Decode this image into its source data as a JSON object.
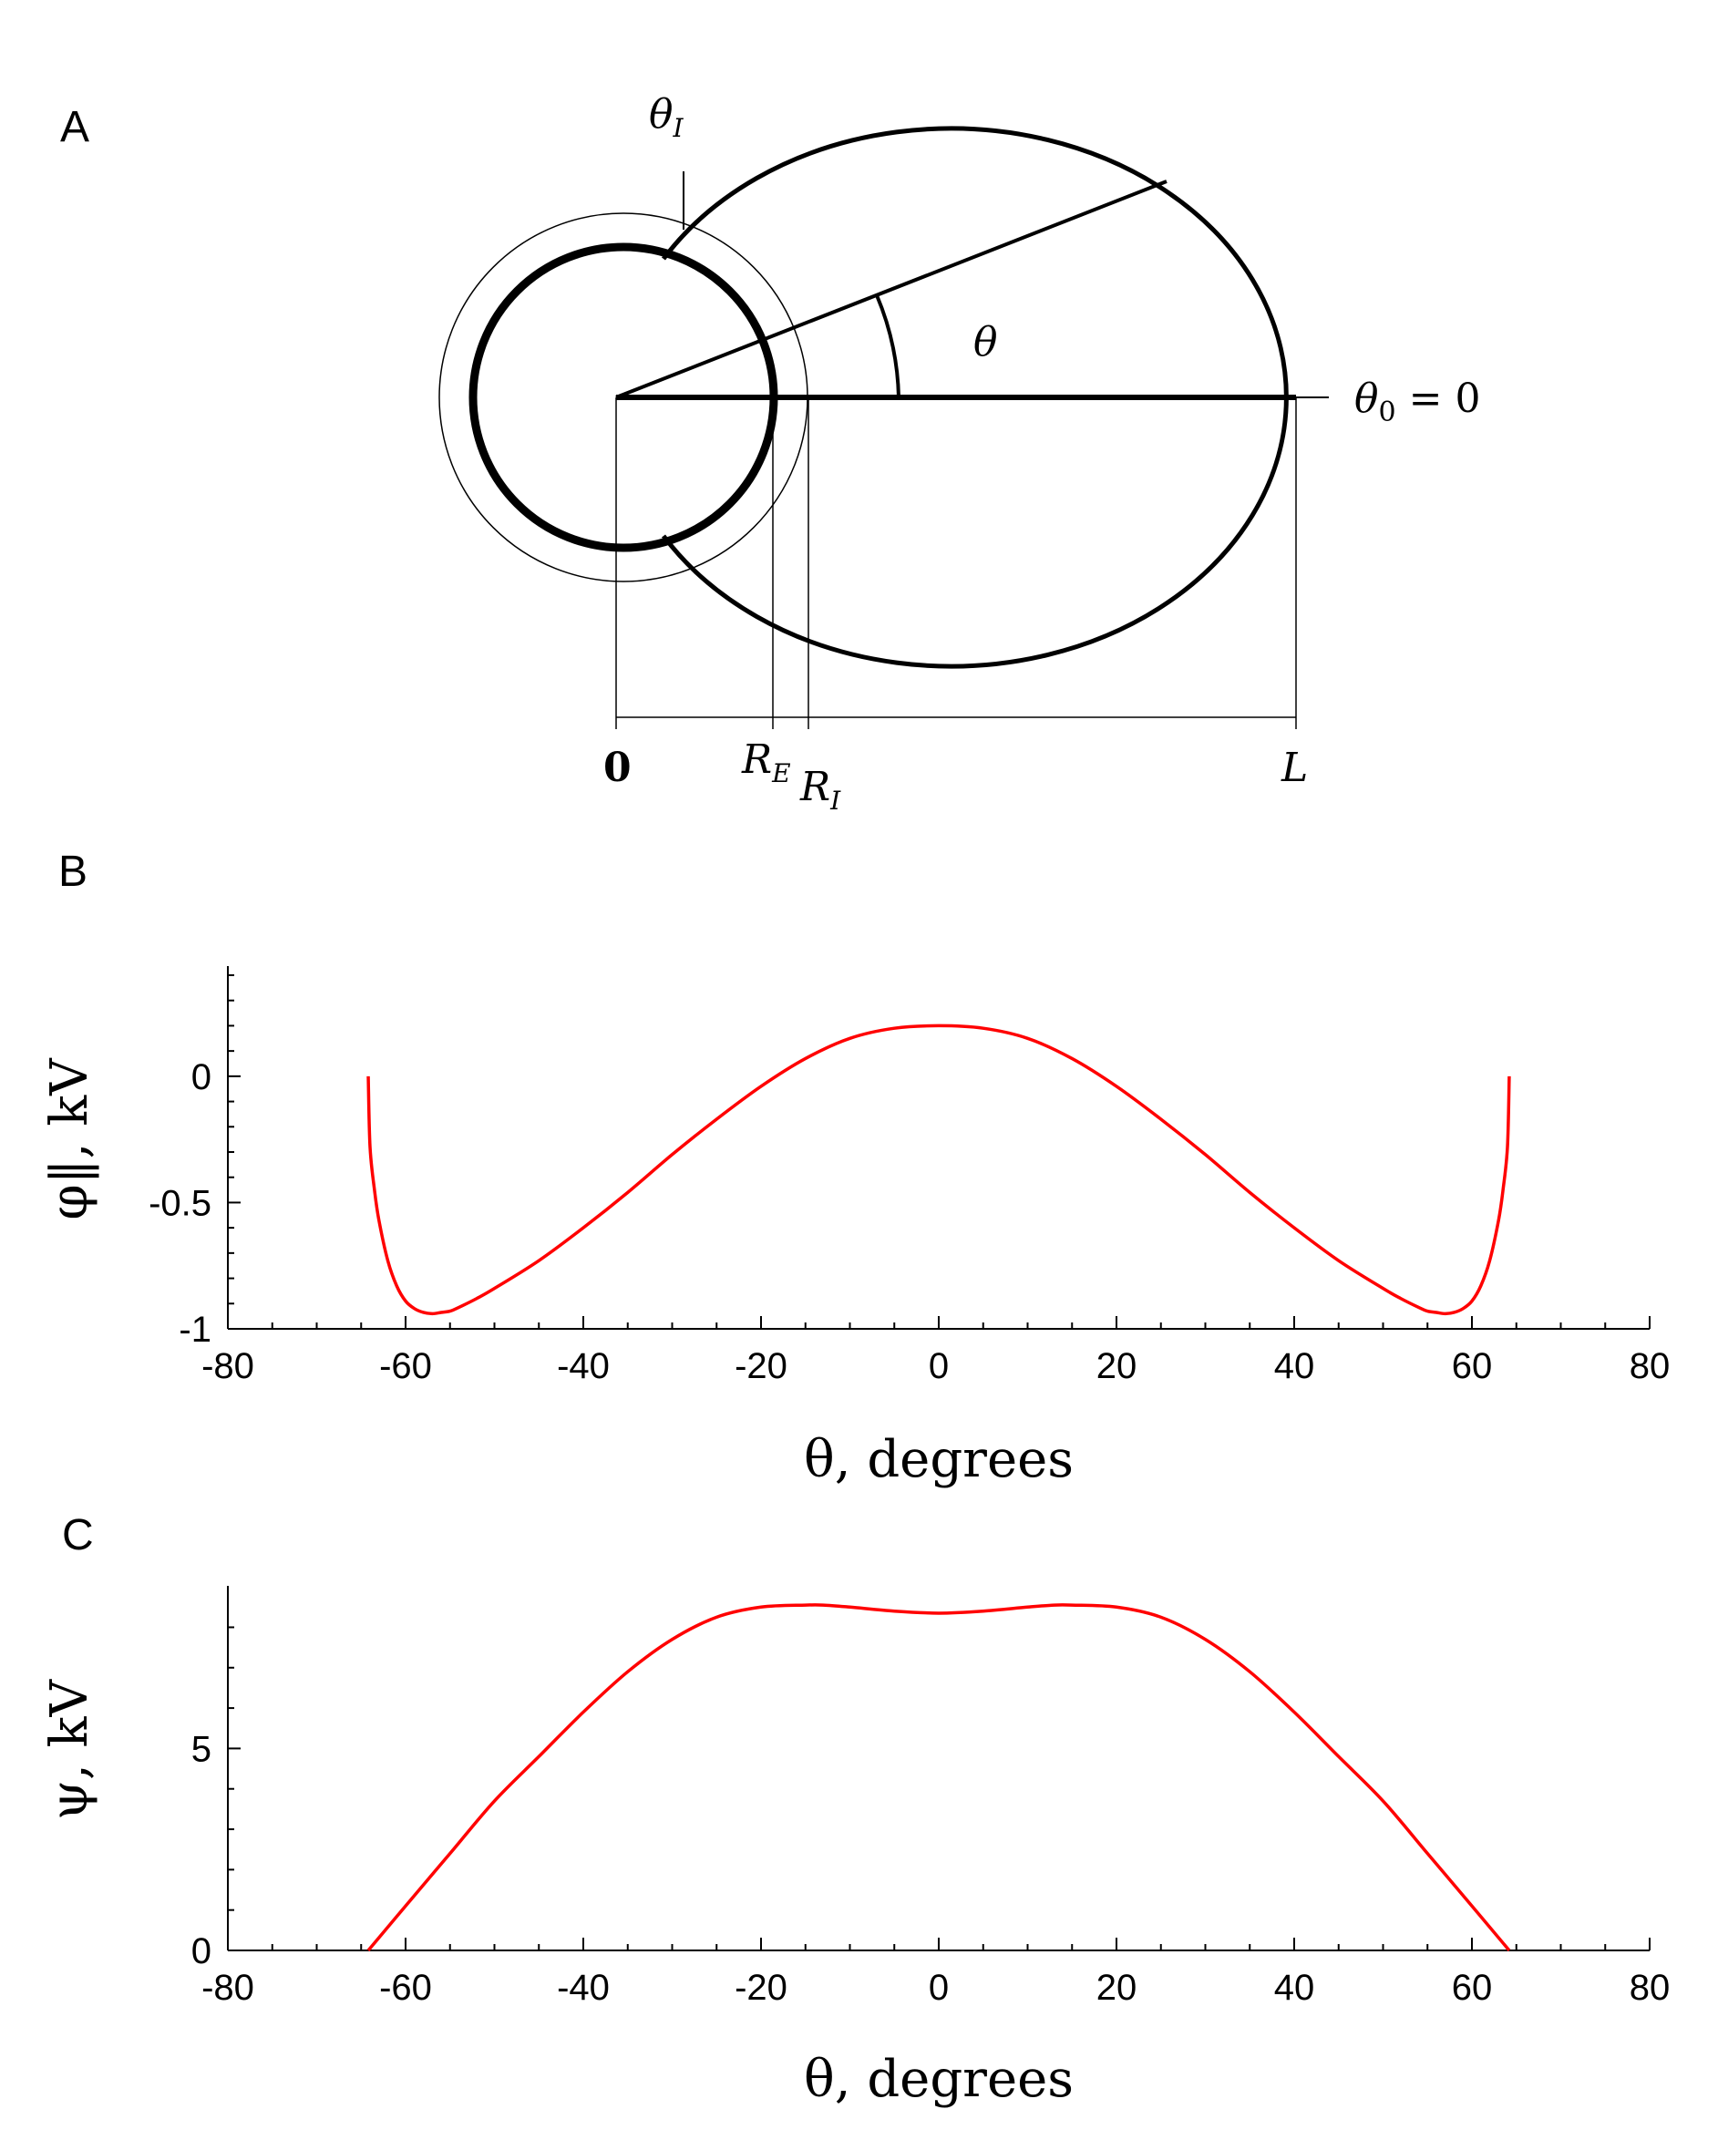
{
  "panels": {
    "a": {
      "letter": "A"
    },
    "b": {
      "letter": "B"
    },
    "c": {
      "letter": "C"
    }
  },
  "diagram": {
    "theta_i": "θ",
    "theta_i_sub": "I",
    "theta": "θ",
    "theta0": "θ",
    "theta0_sub": "0",
    "theta0_value": "= 0",
    "origin": "0",
    "re": "R",
    "re_sub": "E",
    "ri": "R",
    "ri_sub": "I",
    "l": "L"
  },
  "chart_data": [
    {
      "type": "line",
      "panel": "B",
      "xlabel": "θ,  degrees",
      "ylabel": "φ‖,  kV",
      "xlim": [
        -80,
        80
      ],
      "ylim": [
        -1,
        0.4
      ],
      "xticks": [
        -80,
        -60,
        -40,
        -20,
        0,
        20,
        40,
        60,
        80
      ],
      "xtick_labels": [
        "-80",
        "-60",
        "-40",
        "-20",
        "0",
        "20",
        "40",
        "60",
        "80"
      ],
      "yticks": [
        -1,
        -0.5,
        0
      ],
      "ytick_labels": [
        "-1",
        "-0.5",
        "0"
      ],
      "grid": false,
      "series_color": "#ff0000",
      "series": [
        {
          "x": [
            -64.2,
            -64.0,
            -63.5,
            -63.0,
            -62.0,
            -61.0,
            -60.0,
            -59.0,
            -58.0,
            -57.0,
            -56.0,
            -55.0,
            -54.0,
            -52.0,
            -50.0,
            -45.0,
            -40.0,
            -35.0,
            -30.0,
            -25.0,
            -20.0,
            -15.0,
            -10.0,
            -5.0,
            0.0,
            5.0,
            10.0,
            15.0,
            20.0,
            25.0,
            30.0,
            35.0,
            40.0,
            45.0,
            50.0,
            52.0,
            54.0,
            55.0,
            56.0,
            57.0,
            58.0,
            59.0,
            60.0,
            61.0,
            62.0,
            63.0,
            63.5,
            64.0,
            64.2
          ],
          "y": [
            0.0,
            -0.28,
            -0.45,
            -0.57,
            -0.73,
            -0.83,
            -0.89,
            -0.92,
            -0.935,
            -0.94,
            -0.935,
            -0.93,
            -0.915,
            -0.88,
            -0.84,
            -0.73,
            -0.6,
            -0.46,
            -0.31,
            -0.17,
            -0.04,
            0.07,
            0.15,
            0.19,
            0.2,
            0.19,
            0.15,
            0.07,
            -0.04,
            -0.17,
            -0.31,
            -0.46,
            -0.6,
            -0.73,
            -0.84,
            -0.88,
            -0.915,
            -0.93,
            -0.935,
            -0.94,
            -0.935,
            -0.92,
            -0.89,
            -0.83,
            -0.73,
            -0.57,
            -0.45,
            -0.28,
            0.0
          ]
        }
      ]
    },
    {
      "type": "line",
      "panel": "C",
      "xlabel": "θ,  degrees",
      "ylabel": "ψ,  kV",
      "xlim": [
        -80,
        80
      ],
      "ylim": [
        0,
        8.8
      ],
      "xticks": [
        -80,
        -60,
        -40,
        -20,
        0,
        20,
        40,
        60,
        80
      ],
      "xtick_labels": [
        "-80",
        "-60",
        "-40",
        "-20",
        "0",
        "20",
        "40",
        "60",
        "80"
      ],
      "yticks": [
        0,
        5
      ],
      "ytick_labels": [
        "0",
        "5"
      ],
      "grid": false,
      "series_color": "#ff0000",
      "series": [
        {
          "x": [
            -64.2,
            -60.0,
            -55.0,
            -50.0,
            -45.0,
            -40.0,
            -35.0,
            -30.0,
            -25.0,
            -20.0,
            -15.0,
            -13.0,
            -10.0,
            -5.0,
            0.0,
            5.0,
            10.0,
            13.0,
            15.0,
            20.0,
            25.0,
            30.0,
            35.0,
            40.0,
            45.0,
            50.0,
            55.0,
            60.0,
            64.2
          ],
          "y": [
            0.0,
            1.1,
            2.4,
            3.7,
            4.8,
            5.9,
            6.9,
            7.7,
            8.25,
            8.5,
            8.55,
            8.55,
            8.5,
            8.4,
            8.35,
            8.4,
            8.5,
            8.55,
            8.55,
            8.5,
            8.25,
            7.7,
            6.9,
            5.9,
            4.8,
            3.7,
            2.4,
            1.1,
            0.0
          ]
        }
      ]
    }
  ]
}
